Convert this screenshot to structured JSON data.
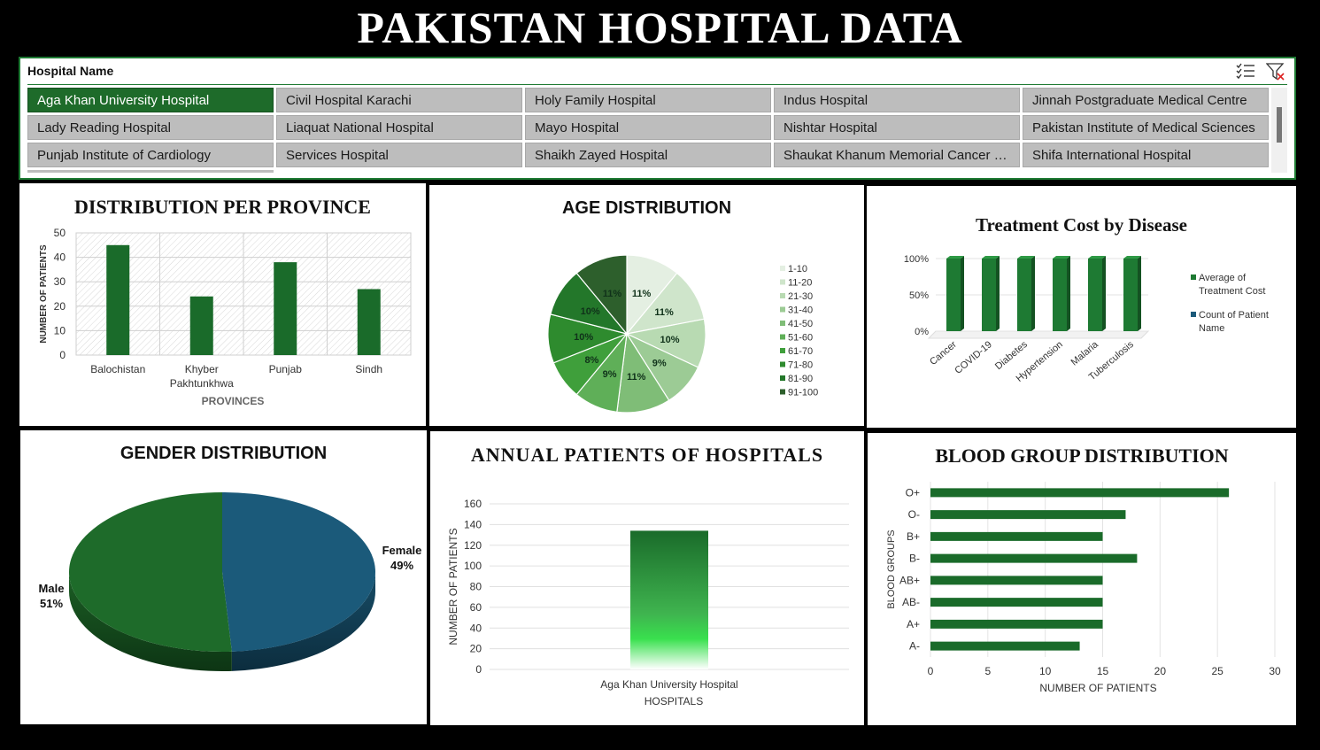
{
  "page_title": "PAKISTAN HOSPITAL DATA",
  "slicer": {
    "header": "Hospital Name",
    "items": [
      {
        "label": "Aga Khan University Hospital",
        "selected": true
      },
      {
        "label": "Civil Hospital Karachi",
        "selected": false
      },
      {
        "label": "Holy Family Hospital",
        "selected": false
      },
      {
        "label": "Indus Hospital",
        "selected": false
      },
      {
        "label": "Jinnah Postgraduate Medical Centre",
        "selected": false
      },
      {
        "label": "Lady Reading Hospital",
        "selected": false
      },
      {
        "label": "Liaquat National Hospital",
        "selected": false
      },
      {
        "label": "Mayo Hospital",
        "selected": false
      },
      {
        "label": "Nishtar Hospital",
        "selected": false
      },
      {
        "label": "Pakistan Institute of Medical Sciences",
        "selected": false
      },
      {
        "label": "Punjab Institute of Cardiology",
        "selected": false
      },
      {
        "label": "Services Hospital",
        "selected": false
      },
      {
        "label": "Shaikh Zayed Hospital",
        "selected": false
      },
      {
        "label": "Shaukat Khanum Memorial Cancer Ho...",
        "selected": false
      },
      {
        "label": "Shifa International Hospital",
        "selected": false
      }
    ],
    "icons": [
      "multi-select-icon",
      "clear-filter-icon"
    ]
  },
  "colors": {
    "dark_green": "#1e6b2a",
    "bar_green": "#1a6b2a",
    "blue": "#1b5a7a"
  },
  "chart_data": [
    {
      "id": "province",
      "type": "bar",
      "title": "DISTRIBUTION PER PROVINCE",
      "xlabel": "PROVINCES",
      "ylabel": "NUMBER OF PATIENTS",
      "categories": [
        "Balochistan",
        "Khyber Pakhtunkhwa",
        "Punjab",
        "Sindh"
      ],
      "values": [
        45,
        24,
        38,
        27
      ],
      "ylim": [
        0,
        50
      ],
      "yticks": [
        "0",
        "10",
        "20",
        "30",
        "40",
        "50"
      ],
      "grid": true
    },
    {
      "id": "age",
      "type": "pie",
      "title": "AGE DISTRIBUTION",
      "legend_position": "right",
      "labels": [
        "1-10",
        "11-20",
        "21-30",
        "31-40",
        "41-50",
        "51-60",
        "61-70",
        "71-80",
        "81-90",
        "91-100"
      ],
      "values": [
        11,
        11,
        10,
        9,
        11,
        9,
        8,
        10,
        10,
        11
      ],
      "data_labels": [
        "11%",
        "11%",
        "10%",
        "9%",
        "11%",
        "9%",
        "8%",
        "10%",
        "10%",
        "11%"
      ],
      "colors": [
        "#e4efe2",
        "#cfe5cb",
        "#b8dab2",
        "#9ccb95",
        "#7fbd77",
        "#5faf58",
        "#3f9f3b",
        "#2e8b2e",
        "#23772a",
        "#2d5f2c"
      ]
    },
    {
      "id": "treatment",
      "type": "bar",
      "title": "Treatment Cost by Disease",
      "categories": [
        "Cancer",
        "COVID-19",
        "Diabetes",
        "Hypertension",
        "Malaria",
        "Tuberculosis"
      ],
      "series": [
        {
          "name": "Average of Treatment Cost",
          "values": [
            100,
            100,
            100,
            100,
            100,
            100
          ],
          "color": "#1e7a33"
        },
        {
          "name": "Count of Patient Name",
          "values": [
            0,
            0,
            0,
            0,
            0,
            0
          ],
          "color": "#1b5a7a"
        }
      ],
      "yticks": [
        "0%",
        "50%",
        "100%"
      ],
      "ylim": [
        0,
        100
      ],
      "legend_position": "right"
    },
    {
      "id": "gender",
      "type": "pie",
      "title": "GENDER DISTRIBUTION",
      "labels": [
        "Male",
        "Female"
      ],
      "values": [
        51,
        49
      ],
      "data_labels": [
        "51%",
        "49%"
      ],
      "colors": [
        "#1e6b2a",
        "#1b5a7a"
      ]
    },
    {
      "id": "annual",
      "type": "bar",
      "title": "ANNUAL PATIENTS OF HOSPITALS",
      "xlabel": "HOSPITALS",
      "ylabel": "NUMBER OF PATIENTS",
      "categories": [
        "Aga Khan University Hospital"
      ],
      "values": [
        134
      ],
      "ylim": [
        0,
        160
      ],
      "yticks": [
        "0",
        "20",
        "40",
        "60",
        "80",
        "100",
        "120",
        "140",
        "160"
      ],
      "grid": true
    },
    {
      "id": "blood",
      "type": "bar",
      "orientation": "horizontal",
      "title": "BLOOD GROUP DISTRIBUTION",
      "xlabel": "NUMBER OF PATIENTS",
      "ylabel": "BLOOD GROUPS",
      "categories": [
        "O+",
        "O-",
        "B+",
        "B-",
        "AB+",
        "AB-",
        "A+",
        "A-"
      ],
      "values": [
        26,
        17,
        15,
        18,
        15,
        15,
        15,
        13
      ],
      "xlim": [
        0,
        30
      ],
      "xticks": [
        "0",
        "5",
        "10",
        "15",
        "20",
        "25",
        "30"
      ],
      "grid": true
    }
  ]
}
